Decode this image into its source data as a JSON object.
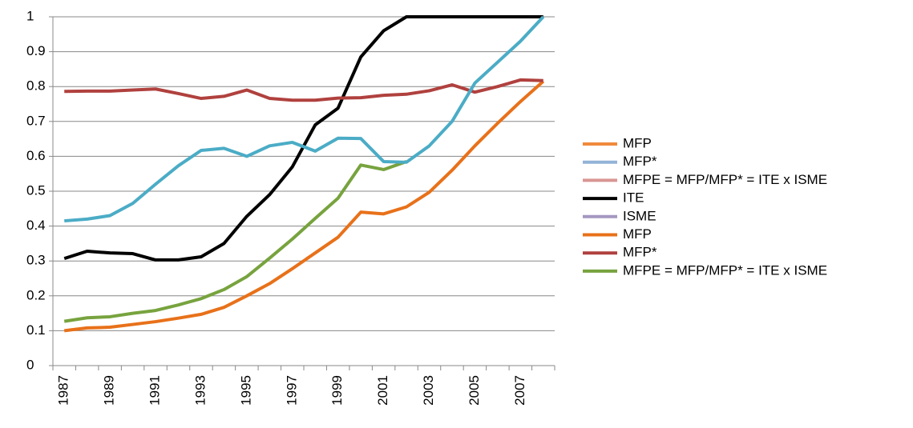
{
  "chart_data": {
    "type": "line",
    "categories": [
      "1987",
      null,
      "1989",
      null,
      "1991",
      null,
      "1993",
      null,
      "1995",
      null,
      "1997",
      null,
      "1999",
      null,
      "2001",
      null,
      "2003",
      null,
      "2005",
      null,
      "2007",
      null
    ],
    "series": [
      {
        "name": "MFP",
        "color": "#F08A3C",
        "values": [
          null,
          null,
          null,
          null,
          null,
          null,
          null,
          null,
          null,
          null,
          null,
          null,
          null,
          null,
          null,
          null,
          null,
          null,
          null,
          null,
          null,
          null
        ]
      },
      {
        "name": "MFP*",
        "color": "#93B3D7",
        "values": [
          null,
          null,
          null,
          null,
          null,
          null,
          null,
          null,
          null,
          null,
          null,
          null,
          null,
          null,
          null,
          null,
          null,
          null,
          null,
          null,
          null,
          null
        ]
      },
      {
        "name": "MFPE = MFP/MFP* = ITE x ISME",
        "color": "#D99694",
        "values": [
          null,
          null,
          null,
          null,
          null,
          null,
          null,
          null,
          null,
          null,
          null,
          null,
          null,
          null,
          null,
          null,
          null,
          null,
          null,
          null,
          null,
          null
        ]
      },
      {
        "name": "ITE",
        "color": "#000000",
        "values": [
          0.307,
          0.328,
          0.323,
          0.321,
          0.303,
          0.303,
          0.312,
          0.35,
          0.428,
          0.49,
          0.57,
          0.69,
          0.738,
          0.885,
          0.96,
          1.0,
          1.0,
          1.0,
          1.0,
          1.0,
          1.0,
          1.0
        ]
      },
      {
        "name": "ISME",
        "color": "#A597C1",
        "values": [
          null,
          null,
          null,
          null,
          null,
          null,
          null,
          null,
          null,
          null,
          null,
          null,
          null,
          null,
          null,
          null,
          null,
          null,
          null,
          null,
          null,
          null
        ]
      },
      {
        "name": "MFP",
        "color": "#E8711A",
        "values": [
          0.1,
          0.108,
          0.11,
          0.118,
          0.126,
          0.136,
          0.147,
          0.167,
          0.2,
          0.235,
          0.278,
          0.323,
          0.368,
          0.44,
          0.435,
          0.455,
          0.497,
          0.56,
          0.63,
          0.695,
          0.757,
          0.815
        ]
      },
      {
        "name": "MFP*",
        "color": "#B0413E",
        "values": [
          0.786,
          0.787,
          0.787,
          0.79,
          0.793,
          0.78,
          0.766,
          0.772,
          0.79,
          0.766,
          0.761,
          0.761,
          0.767,
          0.768,
          0.775,
          0.778,
          0.788,
          0.805,
          0.784,
          0.8,
          0.819,
          0.817
        ]
      },
      {
        "name": "MFPE = MFP/MFP* = ITE x ISME",
        "color": "#77A33E",
        "values": [
          0.127,
          0.137,
          0.14,
          0.15,
          0.158,
          0.174,
          0.192,
          0.218,
          0.255,
          0.308,
          0.363,
          0.422,
          0.48,
          0.575,
          0.562,
          0.585,
          null,
          null,
          null,
          null,
          null,
          null
        ]
      },
      {
        "color": "#4BACC6",
        "values": [
          0.415,
          0.42,
          0.43,
          0.465,
          0.52,
          0.573,
          0.617,
          0.623,
          0.6,
          0.63,
          0.64,
          0.615,
          0.652,
          0.651,
          0.585,
          0.583,
          0.63,
          0.7,
          0.81,
          0.87,
          0.93,
          1.0
        ]
      }
    ],
    "ylim": [
      0,
      1
    ],
    "yticks": [
      0,
      0.1,
      0.2,
      0.3,
      0.4,
      0.5,
      0.6,
      0.7,
      0.8,
      0.9,
      1
    ],
    "grid": true
  }
}
